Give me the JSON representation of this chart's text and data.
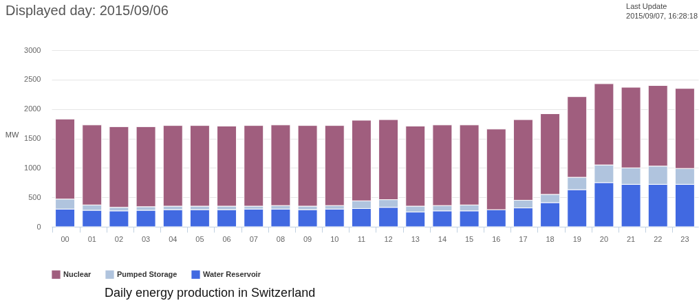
{
  "chart_data": {
    "type": "bar",
    "title": "Displayed day: 2015/09/06",
    "ylabel": "MW",
    "stacked": true,
    "annotations": [
      "Last Update",
      "2015/09/07, 16:28:18",
      "Daily energy production in Switzerland"
    ],
    "categories": [
      "00",
      "01",
      "02",
      "03",
      "04",
      "05",
      "06",
      "07",
      "08",
      "09",
      "10",
      "11",
      "12",
      "13",
      "14",
      "15",
      "16",
      "17",
      "18",
      "19",
      "20",
      "21",
      "22",
      "23"
    ],
    "series": [
      {
        "name": "Water Reservoir",
        "color": "#4169e1",
        "values": [
          300,
          280,
          270,
          280,
          290,
          290,
          290,
          300,
          300,
          290,
          300,
          310,
          330,
          250,
          270,
          270,
          290,
          320,
          410,
          630,
          750,
          720,
          720,
          720
        ]
      },
      {
        "name": "Pumped Storage",
        "color": "#b0c4de",
        "values": [
          170,
          90,
          60,
          60,
          60,
          60,
          60,
          50,
          60,
          60,
          60,
          130,
          130,
          100,
          90,
          100,
          null,
          130,
          140,
          210,
          300,
          280,
          310,
          270
        ]
      },
      {
        "name": "Nuclear",
        "color": "#a05e7e",
        "values": [
          1360,
          1360,
          1370,
          1360,
          1370,
          1370,
          1360,
          1370,
          1370,
          1370,
          1360,
          1370,
          1360,
          1360,
          1370,
          1360,
          1370,
          1370,
          1370,
          1370,
          1380,
          1370,
          1370,
          1360
        ]
      }
    ],
    "ylim": [
      0,
      3000
    ],
    "yticks": [
      0,
      500,
      1000,
      1500,
      2000,
      2500,
      3000
    ],
    "grid": "y",
    "legend": "bottom"
  }
}
